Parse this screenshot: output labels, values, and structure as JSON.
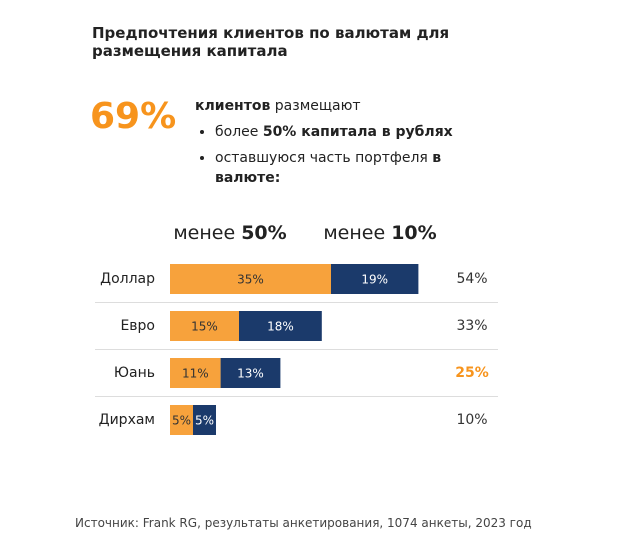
{
  "header": {
    "title": "Предпочтения клиентов по валютам для размещения капитала"
  },
  "highlight": {
    "value_label": "69%",
    "color": "#f7941d",
    "intro": [
      {
        "text": "клиентов",
        "bold": true
      },
      {
        "text": " размещают"
      }
    ],
    "items": [
      [
        {
          "text": "более "
        },
        {
          "text": "50% капитала в рублях",
          "bold": true
        }
      ],
      [
        {
          "text": "оставшуюся часть портфеля "
        },
        {
          "text": "в валюте:",
          "bold": true
        }
      ]
    ]
  },
  "chart_data": {
    "type": "stacked-bar-horizontal",
    "categories": [
      "Доллар",
      "Евро",
      "Юань",
      "Дирхам"
    ],
    "series": [
      {
        "name": "менее 50%",
        "color": "#f7a23c",
        "values": [
          35,
          15,
          11,
          5
        ],
        "value_labels": [
          "35%",
          "15%",
          "11%",
          "5%"
        ]
      },
      {
        "name": "менее 10%",
        "color": "#1b3a6b",
        "values": [
          19,
          18,
          13,
          5
        ],
        "value_labels": [
          "19%",
          "18%",
          "13%",
          "5%"
        ]
      }
    ],
    "totals": [
      54,
      33,
      25,
      10
    ],
    "total_labels": [
      "54%",
      "33%",
      "25%",
      "10%"
    ],
    "total_colors": [
      "#333333",
      "#333333",
      "#f7941d",
      "#333333"
    ]
  },
  "footer": {
    "source": "Источник: Frank RG, результаты анкетирования, 1074 анкеты, 2023 год"
  }
}
